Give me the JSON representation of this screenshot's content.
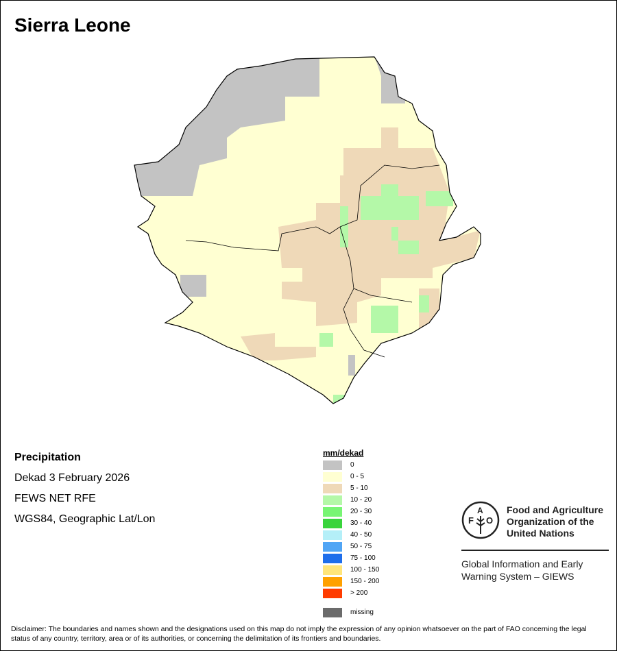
{
  "title": "Sierra Leone",
  "info": {
    "heading": "Precipitation",
    "period": "Dekad 3 February 2026",
    "source": "FEWS NET RFE",
    "projection": "WGS84, Geographic Lat/Lon"
  },
  "legend": {
    "title": "mm/dekad",
    "items": [
      {
        "label": "0",
        "color": "#c3c3c3"
      },
      {
        "label": "0 - 5",
        "color": "#ffffd2"
      },
      {
        "label": "5 - 10",
        "color": "#efd9b8"
      },
      {
        "label": "10 - 20",
        "color": "#b4f8a8"
      },
      {
        "label": "20 - 30",
        "color": "#78f574"
      },
      {
        "label": "30 - 40",
        "color": "#39d43c"
      },
      {
        "label": "40 - 50",
        "color": "#b4eff8"
      },
      {
        "label": "50 - 75",
        "color": "#50a5f5"
      },
      {
        "label": "75 - 100",
        "color": "#1e6eeb"
      },
      {
        "label": "100 - 150",
        "color": "#ffe57a"
      },
      {
        "label": "150 - 200",
        "color": "#ffa100"
      },
      {
        "label": "> 200",
        "color": "#ff3c00"
      }
    ],
    "missing": {
      "label": "missing",
      "color": "#6b6b6b"
    }
  },
  "logo": {
    "emblem_text": "FAO FIAT PANIS",
    "org_lines": [
      "Food and Agriculture",
      "Organization of the",
      "United Nations"
    ],
    "system_lines": [
      "Global Information and Early",
      "Warning System – GIEWS"
    ]
  },
  "disclaimer": "Disclaimer: The boundaries and names shown and the designations used on this map do not imply the expression of any opinion whatsoever on the part of FAO concerning the legal status of any country, territory, area or of its authorities, or concerning the delimitation of its frontiers and boundaries."
}
